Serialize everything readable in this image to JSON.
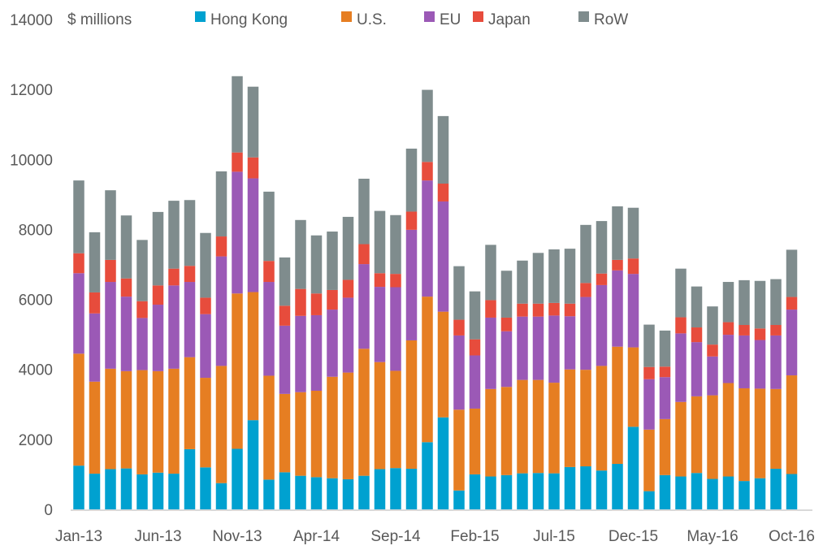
{
  "chart_data": {
    "type": "bar",
    "stacked": true,
    "ylabel": "$ millions",
    "ylim": [
      0,
      14000
    ],
    "yticks": [
      0,
      2000,
      4000,
      6000,
      8000,
      10000,
      12000,
      14000
    ],
    "grid": false,
    "legend_position": "top",
    "categories": [
      "Jan-13",
      "Feb-13",
      "Mar-13",
      "Apr-13",
      "May-13",
      "Jun-13",
      "Jul-13",
      "Aug-13",
      "Sep-13",
      "Oct-13",
      "Nov-13",
      "Dec-13",
      "Jan-14",
      "Feb-14",
      "Mar-14",
      "Apr-14",
      "May-14",
      "Jun-14",
      "Jul-14",
      "Aug-14",
      "Sep-14",
      "Oct-14",
      "Nov-14",
      "Dec-14",
      "Jan-15",
      "Feb-15",
      "Mar-15",
      "Apr-15",
      "May-15",
      "Jun-15",
      "Jul-15",
      "Aug-15",
      "Sep-15",
      "Oct-15",
      "Nov-15",
      "Dec-15",
      "Jan-16",
      "Feb-16",
      "Mar-16",
      "Apr-16",
      "May-16",
      "Jun-16",
      "Jul-16",
      "Aug-16",
      "Sep-16",
      "Oct-16"
    ],
    "xtick_labels": [
      "Jan-13",
      "Jun-13",
      "Nov-13",
      "Apr-14",
      "Sep-14",
      "Feb-15",
      "Jul-15",
      "Dec-15",
      "May-16",
      "Oct-16"
    ],
    "series": [
      {
        "name": "Hong Kong",
        "color": "#00a1d0",
        "values": [
          1250,
          1020,
          1150,
          1170,
          1000,
          1050,
          1020,
          1720,
          1200,
          750,
          1730,
          2550,
          850,
          1060,
          960,
          920,
          890,
          860,
          960,
          1150,
          1180,
          1160,
          1920,
          2630,
          540,
          1000,
          940,
          980,
          1030,
          1040,
          1030,
          1210,
          1230,
          1110,
          1300,
          2360,
          520,
          980,
          940,
          1040,
          870,
          940,
          810,
          890,
          1160,
          1010
        ]
      },
      {
        "name": "U.S.",
        "color": "#e67e22",
        "values": [
          3200,
          2630,
          2870,
          2780,
          2980,
          2900,
          3000,
          2630,
          2560,
          3350,
          4440,
          3660,
          2970,
          2240,
          2390,
          2470,
          2900,
          3050,
          3630,
          3060,
          2780,
          3670,
          4160,
          3020,
          2310,
          1880,
          2500,
          2520,
          2670,
          2660,
          2590,
          2790,
          2760,
          2990,
          3350,
          2270,
          1760,
          1600,
          2130,
          2190,
          2390,
          2670,
          2650,
          2560,
          2280,
          2820
        ]
      },
      {
        "name": "EU",
        "color": "#9b59b6",
        "values": [
          2300,
          1950,
          2480,
          2130,
          1490,
          1900,
          2380,
          2150,
          1820,
          3130,
          3480,
          3250,
          2680,
          1950,
          2180,
          2160,
          1920,
          2140,
          2420,
          2150,
          2390,
          3160,
          3320,
          3150,
          2120,
          1520,
          2040,
          1590,
          1810,
          1810,
          1920,
          1520,
          2080,
          2310,
          2180,
          2100,
          1440,
          1200,
          1960,
          1550,
          1110,
          1380,
          1510,
          1390,
          1530,
          1880
        ]
      },
      {
        "name": "Japan",
        "color": "#e74c3c",
        "values": [
          570,
          600,
          630,
          520,
          480,
          550,
          480,
          460,
          470,
          570,
          550,
          600,
          600,
          570,
          770,
          620,
          560,
          510,
          570,
          390,
          380,
          520,
          530,
          510,
          450,
          460,
          500,
          390,
          370,
          370,
          360,
          360,
          400,
          330,
          300,
          440,
          350,
          300,
          460,
          420,
          340,
          360,
          300,
          330,
          300,
          360
        ]
      },
      {
        "name": "RoW",
        "color": "#7f8c8d",
        "values": [
          2080,
          1720,
          1990,
          1800,
          1750,
          2100,
          1940,
          1880,
          1850,
          1860,
          2180,
          2020,
          1980,
          1380,
          1970,
          1660,
          1670,
          1800,
          1870,
          1780,
          1680,
          1800,
          2060,
          1930,
          1530,
          1370,
          1580,
          1340,
          1230,
          1450,
          1530,
          1570,
          1660,
          1500,
          1530,
          1450,
          1210,
          1030,
          1390,
          1170,
          1090,
          1150,
          1280,
          1360,
          1310,
          1350
        ]
      }
    ]
  }
}
